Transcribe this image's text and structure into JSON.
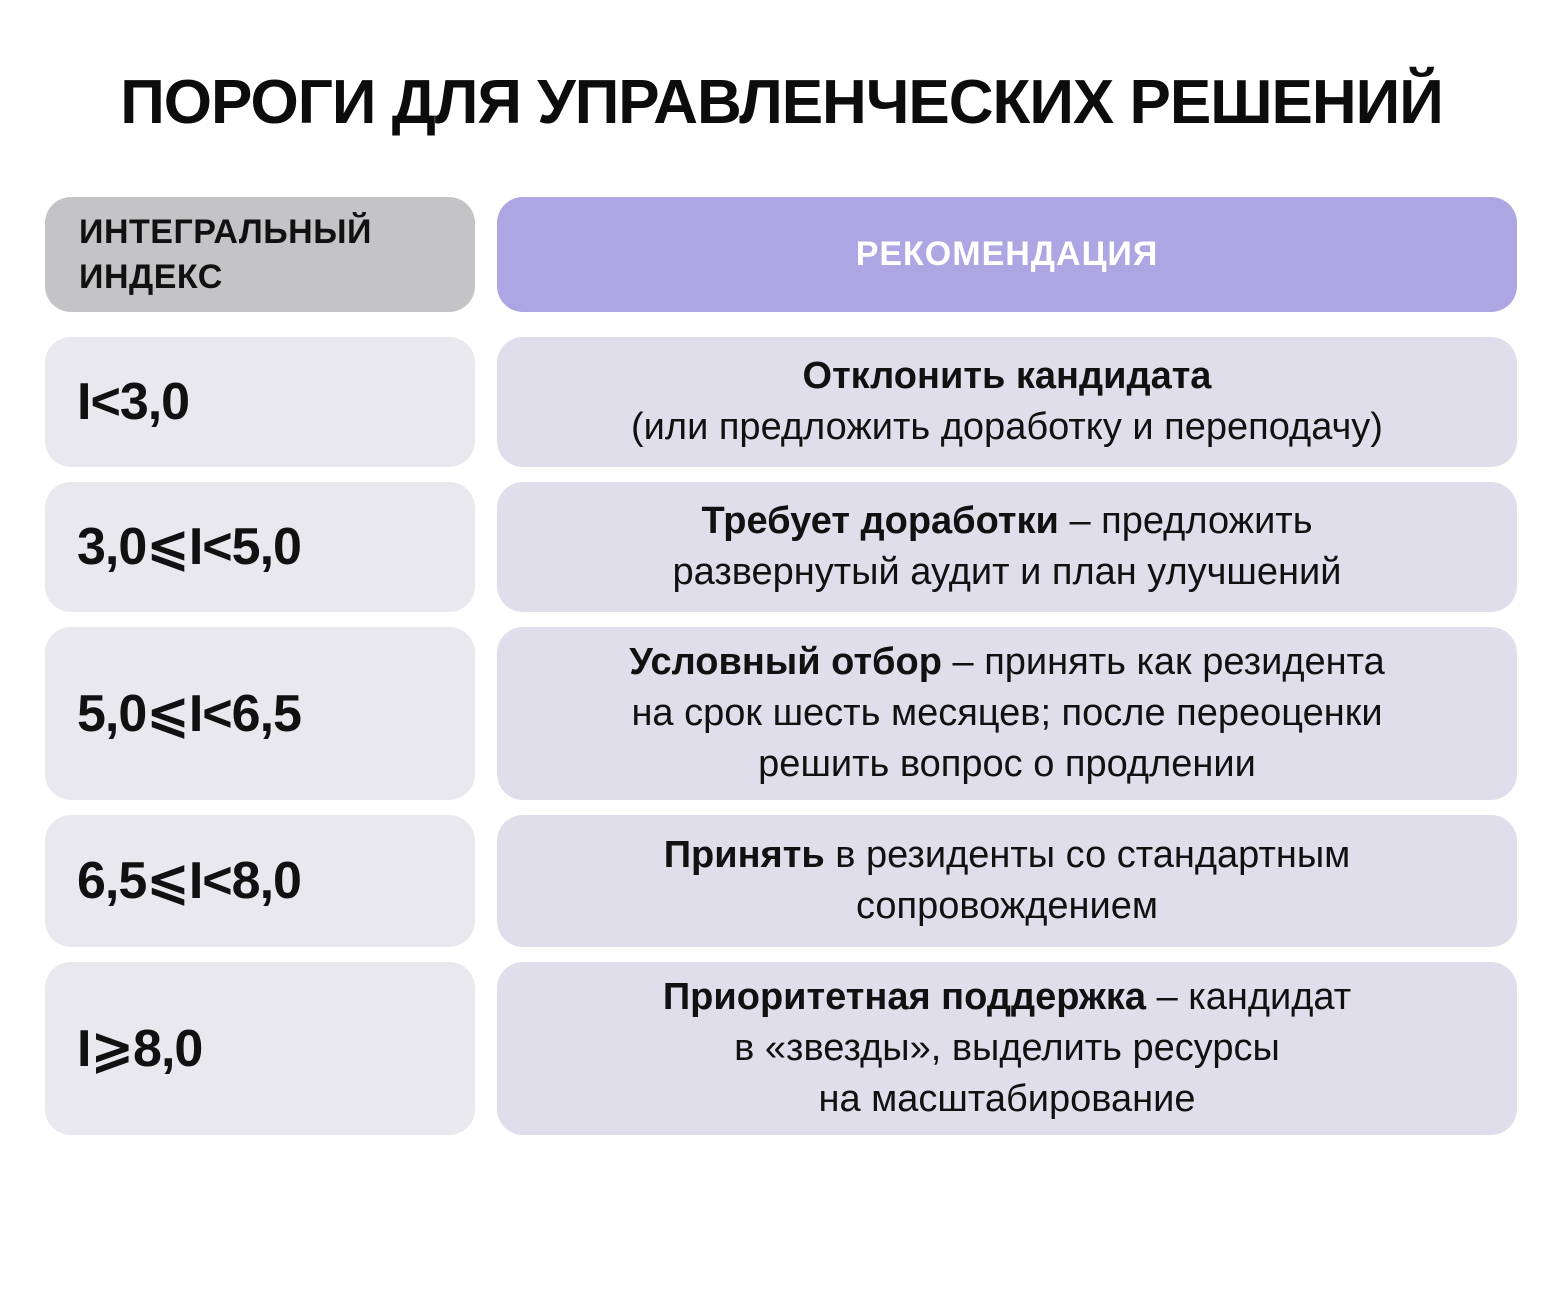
{
  "title": "ПОРОГИ ДЛЯ УПРАВЛЕНЧЕСКИХ РЕШЕНИЙ",
  "colors": {
    "header_gray": "#c4c3c6",
    "header_purple": "#ada6e2",
    "index_cell_bg": "#e9e8ee",
    "recommendation_cell_bg": "#e1deec",
    "text": "#111111",
    "header_text_on_purple": "#ffffff"
  },
  "table": {
    "col1_header": "ИНТЕГРАЛЬНЫЙ\nИНДЕКС",
    "col2_header": "РЕКОМЕНДАЦИЯ",
    "rows": [
      {
        "index": "I<3,0",
        "lead": "Отклонить кандидата",
        "rest": "\n(или предложить доработку и переподачу)"
      },
      {
        "index": "3,0⩽I<5,0",
        "lead": "Требует доработки",
        "rest": " – предложить\nразвернутый аудит и план улучшений"
      },
      {
        "index": "5,0⩽I<6,5",
        "lead": "Условный отбор",
        "rest": " – принять как резидента\nна срок шесть месяцев; после переоценки\nрешить вопрос о продлении"
      },
      {
        "index": "6,5⩽I<8,0",
        "lead": "Принять",
        "rest": " в резиденты со стандартным\nсопровождением"
      },
      {
        "index": "I⩾8,0",
        "lead": "Приоритетная поддержка",
        "rest": " – кандидат\nв «звезды», выделить ресурсы\nна масштабирование"
      }
    ]
  },
  "chart_data": {
    "type": "table",
    "title": "ПОРОГИ ДЛЯ УПРАВЛЕНЧЕСКИХ РЕШЕНИЙ",
    "columns": [
      "ИНТЕГРАЛЬНЫЙ ИНДЕКС",
      "РЕКОМЕНДАЦИЯ"
    ],
    "rows": [
      [
        "I<3,0",
        "Отклонить кандидата (или предложить доработку и переподачу)"
      ],
      [
        "3,0⩽I<5,0",
        "Требует доработки – предложить развернутый аудит и план улучшений"
      ],
      [
        "5,0⩽I<6,5",
        "Условный отбор – принять как резидента на срок шесть месяцев; после переоценки решить вопрос о продлении"
      ],
      [
        "6,5⩽I<8,0",
        "Принять в резиденты со стандартным сопровождением"
      ],
      [
        "I⩾8,0",
        "Приоритетная поддержка – кандидат в «звезды», выделить ресурсы на масштабирование"
      ]
    ]
  }
}
